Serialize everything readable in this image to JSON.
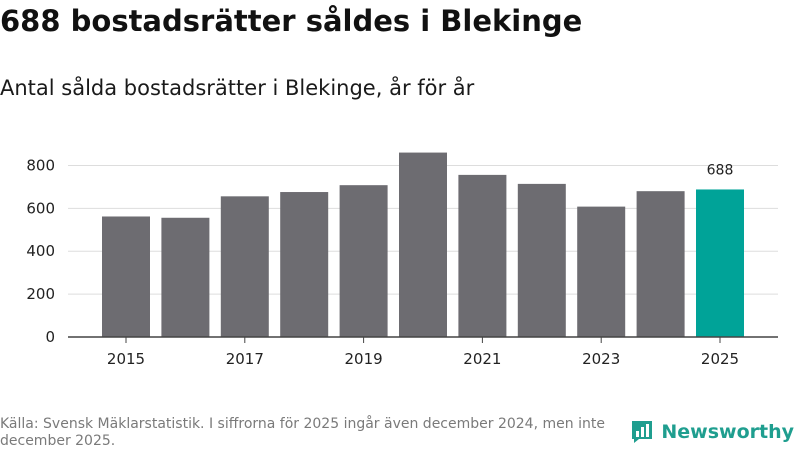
{
  "header": {
    "title": "688 bostadsrätter såldes i Blekinge",
    "subtitle": "Antal sålda bostadsrätter i Blekinge, år för år"
  },
  "footer": {
    "source": "Källa: Svensk Mäklarstatistik. I siffrorna för 2025 ingår även december 2024, men inte december 2025."
  },
  "brand": {
    "name": "Newsworthy",
    "icon": "newsworthy-logo-icon"
  },
  "colors": {
    "bar": "#6d6c71",
    "highlight": "#00a398",
    "grid": "#dddddd",
    "axis": "#444444",
    "brand": "#1f9e8f"
  },
  "chart_data": {
    "type": "bar",
    "title": "Antal sålda bostadsrätter i Blekinge, år för år",
    "xlabel": "",
    "ylabel": "",
    "categories": [
      "2015",
      "2016",
      "2017",
      "2018",
      "2019",
      "2020",
      "2021",
      "2022",
      "2023",
      "2024",
      "2025"
    ],
    "values": [
      562,
      556,
      656,
      676,
      708,
      860,
      756,
      714,
      608,
      680,
      688
    ],
    "highlight_index": 10,
    "data_labels": [
      {
        "index": 10,
        "text": "688"
      }
    ],
    "x_tick_labels": [
      "2015",
      "2017",
      "2019",
      "2021",
      "2023",
      "2025"
    ],
    "y_ticks": [
      0,
      200,
      400,
      600,
      800
    ],
    "ylim": [
      0,
      900
    ],
    "grid": true,
    "legend": "none"
  }
}
